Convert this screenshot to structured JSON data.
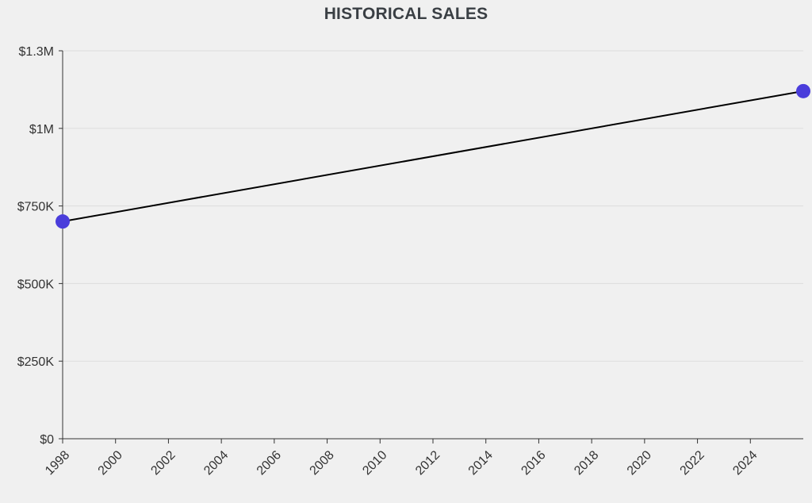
{
  "chart_data": {
    "type": "line",
    "title": "HISTORICAL SALES",
    "xlabel": "",
    "ylabel": "",
    "x": [
      1998,
      2026
    ],
    "series": [
      {
        "values": [
          700000,
          1120000
        ],
        "color": "#4a3ddb"
      }
    ],
    "xlim": [
      1998,
      2026
    ],
    "ylim": [
      0,
      1250000
    ],
    "x_ticks": [
      1998,
      2000,
      2002,
      2004,
      2006,
      2008,
      2010,
      2012,
      2014,
      2016,
      2018,
      2020,
      2022,
      2024
    ],
    "y_ticks": [
      0,
      250000,
      500000,
      750000,
      1000000,
      1250000
    ],
    "y_tick_labels": [
      "$0",
      "$250K",
      "$500K",
      "$750K",
      "$1M",
      "$1.3M"
    ],
    "grid": "horizontal",
    "line_color": "#000000",
    "marker_color": "#4a3ddb"
  }
}
